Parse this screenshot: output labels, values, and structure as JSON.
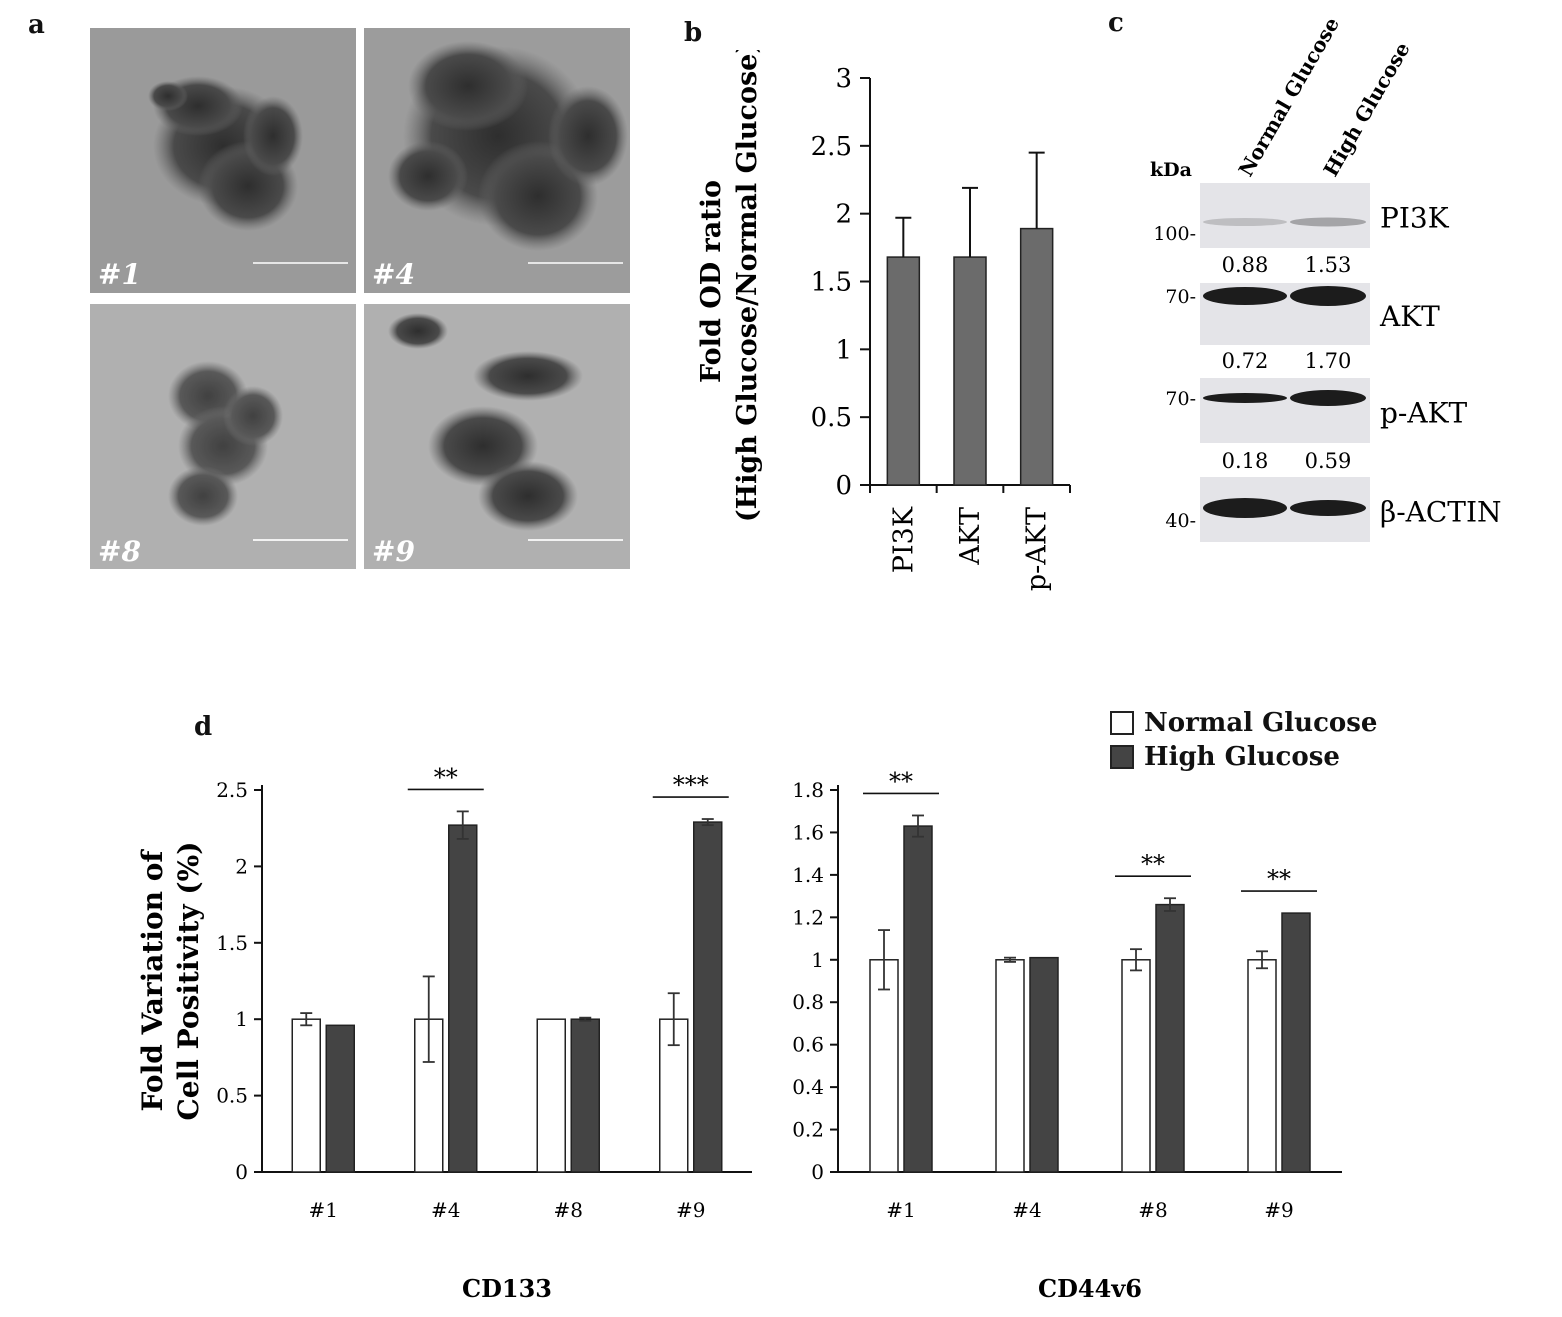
{
  "panel_labels": {
    "a": "a",
    "b": "b",
    "c": "c",
    "d": "d"
  },
  "micrographs": [
    {
      "label": "#1"
    },
    {
      "label": "#4"
    },
    {
      "label": "#8"
    },
    {
      "label": "#9"
    }
  ],
  "chart_data": [
    {
      "type": "bar",
      "panel": "b",
      "categories": [
        "PI3K",
        "AKT",
        "p-AKT"
      ],
      "values": [
        1.68,
        1.68,
        1.89
      ],
      "errors": [
        0.29,
        0.51,
        0.56
      ],
      "ylabel": "Fold OD ratio\n(High Glucose/Normal Glucose)",
      "ylabel_line1": "Fold OD ratio",
      "ylabel_line2": "(High Glucose/Normal Glucose)",
      "yticks": [
        "0",
        "0.5",
        "1",
        "1.5",
        "2",
        "2.5",
        "3"
      ],
      "ylim": [
        0,
        3
      ],
      "bar_color": "#6b6b6b"
    },
    {
      "type": "bar",
      "panel": "d",
      "xlabel": "CD133",
      "ylabel_line1": "Fold Variation of",
      "ylabel_line2": "Cell Positivity (%)",
      "categories": [
        "#1",
        "#4",
        "#8",
        "#9"
      ],
      "series": [
        {
          "name": "Normal Glucose",
          "values": [
            1.0,
            1.0,
            1.0,
            1.0
          ],
          "errors": [
            0.04,
            0.28,
            0.0,
            0.17
          ],
          "color": "#ffffff"
        },
        {
          "name": "High Glucose",
          "values": [
            0.96,
            2.27,
            1.0,
            2.29
          ],
          "errors": [
            0.0,
            0.09,
            0.01,
            0.02
          ],
          "color": "#444444"
        }
      ],
      "significance": [
        "",
        "**",
        "",
        "***"
      ],
      "yticks": [
        "0",
        "0.5",
        "1",
        "1.5",
        "2",
        "2.5"
      ],
      "ylim": [
        0,
        2.5
      ]
    },
    {
      "type": "bar",
      "panel": "d",
      "xlabel": "CD44v6",
      "categories": [
        "#1",
        "#4",
        "#8",
        "#9"
      ],
      "series": [
        {
          "name": "Normal Glucose",
          "values": [
            1.0,
            1.0,
            1.0,
            1.0
          ],
          "errors": [
            0.14,
            0.01,
            0.05,
            0.04
          ],
          "color": "#ffffff"
        },
        {
          "name": "High Glucose",
          "values": [
            1.63,
            1.01,
            1.26,
            1.22
          ],
          "errors": [
            0.05,
            0.0,
            0.03,
            0.0
          ],
          "color": "#444444"
        }
      ],
      "significance": [
        "**",
        "",
        "**",
        "**"
      ],
      "yticks": [
        "0",
        "0.2",
        "0.4",
        "0.6",
        "0.8",
        "1",
        "1.2",
        "1.4",
        "1.6",
        "1.8"
      ],
      "ylim": [
        0,
        1.8
      ]
    }
  ],
  "western_blot": {
    "columns": [
      "Normal Glucose",
      "High Glucose"
    ],
    "kda_label": "kDa",
    "bands": [
      {
        "protein": "PI3K",
        "marker": "100-",
        "ratios": [
          "0.88",
          "1.53"
        ]
      },
      {
        "protein": "AKT",
        "marker": "70-",
        "ratios": [
          "0.72",
          "1.70"
        ]
      },
      {
        "protein": "p-AKT",
        "marker": "70-",
        "ratios": [
          "0.18",
          "0.59"
        ]
      },
      {
        "protein": "β-ACTIN",
        "marker": "40-",
        "ratios": []
      }
    ]
  },
  "legend": {
    "normal": "Normal Glucose",
    "high": "High Glucose"
  }
}
